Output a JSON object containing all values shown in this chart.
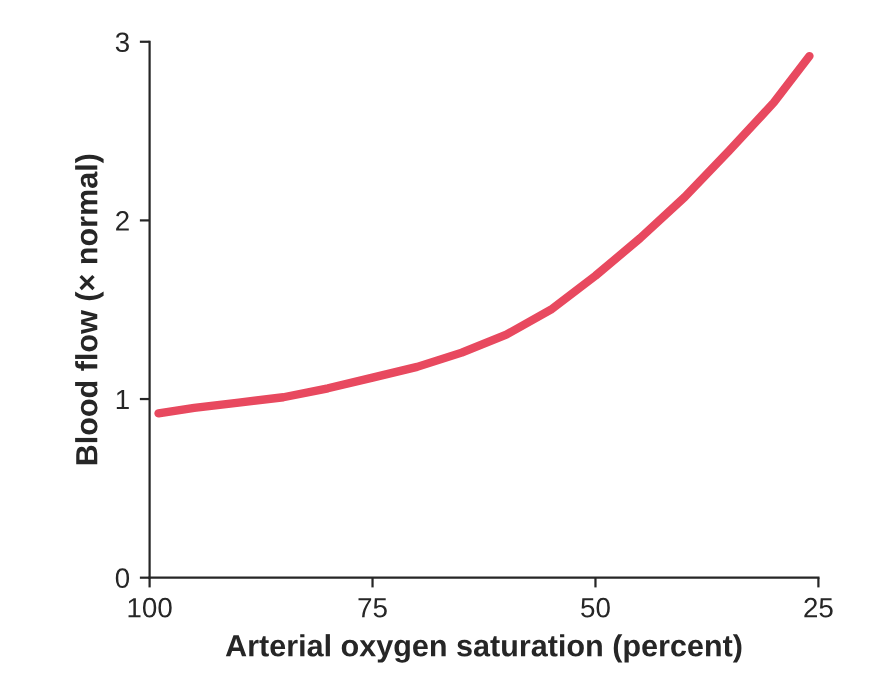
{
  "chart_data": {
    "type": "line",
    "xlabel": "Arterial oxygen saturation (percent)",
    "ylabel": "Blood flow (× normal)",
    "series": [
      {
        "color": "#e8495f",
        "x": [
          99,
          95,
          90,
          85,
          80,
          75,
          70,
          65,
          60,
          55,
          50,
          45,
          40,
          35,
          30,
          26
        ],
        "values": [
          0.92,
          0.95,
          0.98,
          1.01,
          1.06,
          1.12,
          1.18,
          1.26,
          1.36,
          1.5,
          1.69,
          1.9,
          2.13,
          2.39,
          2.66,
          2.92
        ]
      }
    ],
    "xlim": [
      100,
      25
    ],
    "xticks": [
      100,
      75,
      50,
      25
    ],
    "ylim": [
      0,
      3
    ],
    "yticks": [
      0,
      1,
      2,
      3
    ],
    "grid": false,
    "legend": false,
    "marker": "none",
    "line_style": "solid"
  }
}
